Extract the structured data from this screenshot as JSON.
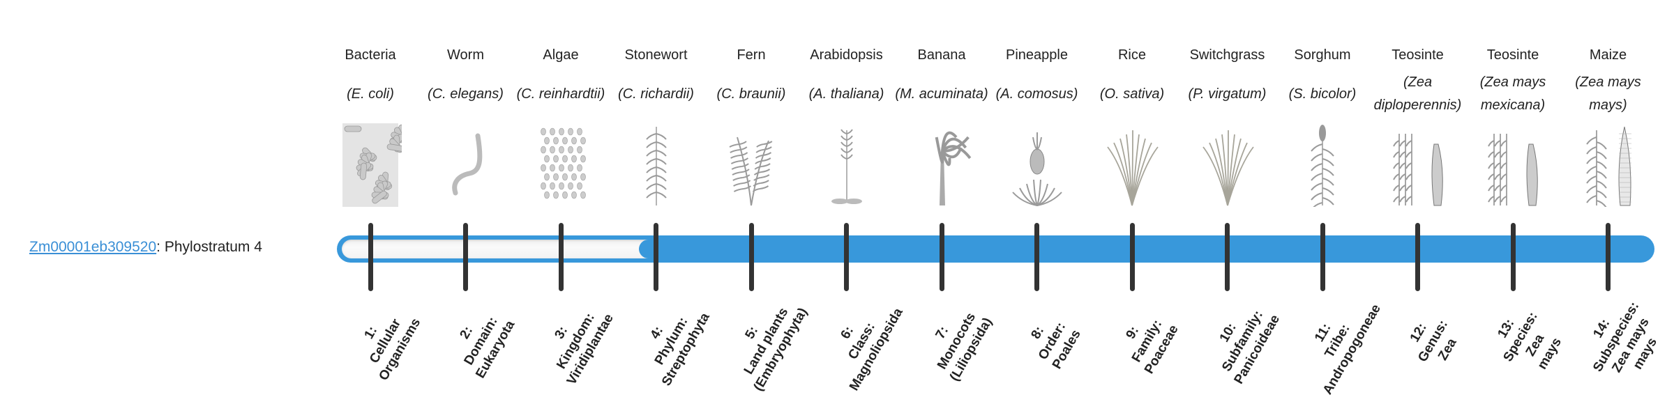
{
  "gene": {
    "id": "Zm00001eb309520",
    "separator": ":",
    "label": "Phylostratum 4"
  },
  "phylostratum": 4,
  "colors": {
    "bar": "#3898db",
    "link": "#3a8fd6",
    "tick": "#333333"
  },
  "organisms": [
    {
      "common": "Bacteria",
      "species": "(E. coli)",
      "illustration": "bacteria"
    },
    {
      "common": "Worm",
      "species": "(C. elegans)",
      "illustration": "worm"
    },
    {
      "common": "Algae",
      "species": "(C. reinhardtii)",
      "illustration": "algae"
    },
    {
      "common": "Stonewort",
      "species": "(C. richardii)",
      "illustration": "stonewort"
    },
    {
      "common": "Fern",
      "species": "(C. braunii)",
      "illustration": "fern"
    },
    {
      "common": "Arabidopsis",
      "species": "(A. thaliana)",
      "illustration": "arabidopsis"
    },
    {
      "common": "Banana",
      "species": "(M. acuminata)",
      "illustration": "banana"
    },
    {
      "common": "Pineapple",
      "species": "(A. comosus)",
      "illustration": "pineapple"
    },
    {
      "common": "Rice",
      "species": "(O. sativa)",
      "illustration": "grass"
    },
    {
      "common": "Switchgrass",
      "species": "(P. virgatum)",
      "illustration": "grass"
    },
    {
      "common": "Sorghum",
      "species": "(S. bicolor)",
      "illustration": "sorghum"
    },
    {
      "common": "Teosinte",
      "species": "(Zea diploperennis)",
      "illustration": "teosinte"
    },
    {
      "common": "Teosinte",
      "species": "(Zea mays mexicana)",
      "illustration": "teosinte"
    },
    {
      "common": "Maize",
      "species": "(Zea mays mays)",
      "illustration": "maize"
    }
  ],
  "strata": [
    {
      "lines": [
        "1:",
        "Cellular",
        "Organisms"
      ]
    },
    {
      "lines": [
        "2:",
        "Domain:",
        "Eukaryota"
      ]
    },
    {
      "lines": [
        "3:",
        "Kingdom:",
        "Viridiplantae"
      ]
    },
    {
      "lines": [
        "4:",
        "Phylum:",
        "Streptophyta"
      ]
    },
    {
      "lines": [
        "5:",
        "Land plants",
        "(Embryophyta)"
      ]
    },
    {
      "lines": [
        "6:",
        "Class:",
        "Magnoliopsida"
      ]
    },
    {
      "lines": [
        "7:",
        "Monocots",
        "(Liliopsida)"
      ]
    },
    {
      "lines": [
        "8:",
        "Order:",
        "Poales"
      ]
    },
    {
      "lines": [
        "9:",
        "Family:",
        "Poaceae"
      ]
    },
    {
      "lines": [
        "10:",
        "Subfamily:",
        "Panicoideae"
      ]
    },
    {
      "lines": [
        "11:",
        "Tribe:",
        "Andropogoneae"
      ]
    },
    {
      "lines": [
        "12:",
        "Genus:",
        "Zea"
      ]
    },
    {
      "lines": [
        "13:",
        "Species:",
        "Zea",
        "mays"
      ]
    },
    {
      "lines": [
        "14:",
        "Subspecies:",
        "Zea mays",
        "mays"
      ]
    }
  ]
}
